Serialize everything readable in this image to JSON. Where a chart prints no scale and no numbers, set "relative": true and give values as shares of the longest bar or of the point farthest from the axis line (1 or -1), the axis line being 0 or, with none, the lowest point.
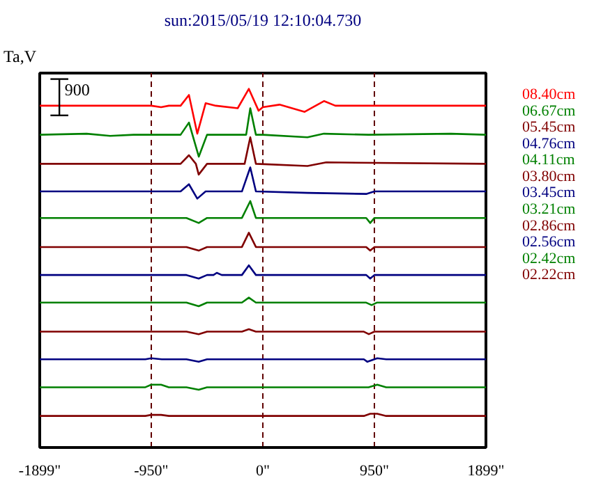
{
  "chart_data": {
    "type": "line",
    "title": "sun:2015/05/19 12:10:04.730",
    "ylabel": "Ta,V",
    "annotations": [
      "900"
    ],
    "relative": true,
    "xlim": [
      -1899,
      1899
    ],
    "xticks": [
      {
        "value": -1899,
        "label": "-1899\""
      },
      {
        "value": -950,
        "label": "-950\""
      },
      {
        "value": 0,
        "label": "0\""
      },
      {
        "value": 950,
        "label": "950\""
      },
      {
        "value": 1899,
        "label": "1899\""
      }
    ],
    "grid": "x",
    "series": [
      {
        "name": "08.40cm",
        "color": "#ff0000",
        "x": [
          -1899,
          -950,
          -866,
          -800,
          -700,
          -629,
          -558,
          -487,
          -400,
          -214,
          -119,
          -36,
          0,
          142,
          356,
          522,
          617,
          900,
          1899
        ],
        "values": [
          0.953,
          0.953,
          0.949,
          0.953,
          0.953,
          0.983,
          0.875,
          0.96,
          0.953,
          0.946,
          1.0,
          0.939,
          0.949,
          0.956,
          0.936,
          0.966,
          0.953,
          0.953,
          0.953
        ]
      },
      {
        "name": "06.67cm",
        "color": "#008000",
        "x": [
          -1899,
          -1500,
          -1300,
          -1100,
          -950,
          -700,
          -629,
          -545,
          -475,
          -214,
          -142,
          -107,
          -59,
          0,
          380,
          520,
          900,
          1600,
          1899
        ],
        "values": [
          0.872,
          0.875,
          0.869,
          0.872,
          0.872,
          0.872,
          0.906,
          0.811,
          0.872,
          0.872,
          0.872,
          0.946,
          0.872,
          0.872,
          0.865,
          0.875,
          0.872,
          0.875,
          0.872
        ]
      },
      {
        "name": "05.45cm",
        "color": "#800000",
        "x": [
          -1899,
          -700,
          -629,
          -570,
          -546,
          -475,
          -214,
          -155,
          -107,
          -59,
          380,
          540,
          1899
        ],
        "values": [
          0.791,
          0.791,
          0.815,
          0.791,
          0.761,
          0.791,
          0.791,
          0.791,
          0.865,
          0.791,
          0.785,
          0.795,
          0.791
        ]
      },
      {
        "name": "04.76cm",
        "color": "#000080",
        "x": [
          -1899,
          -700,
          -629,
          -558,
          -487,
          -178,
          -107,
          -59,
          380,
          880,
          950,
          1899
        ],
        "values": [
          0.714,
          0.714,
          0.734,
          0.694,
          0.714,
          0.714,
          0.781,
          0.714,
          0.71,
          0.707,
          0.714,
          0.714
        ]
      },
      {
        "name": "04.11cm",
        "color": "#008000",
        "x": [
          -1899,
          -650,
          -546,
          -475,
          -178,
          -107,
          -59,
          880,
          914,
          950,
          1899
        ],
        "values": [
          0.64,
          0.64,
          0.626,
          0.64,
          0.64,
          0.687,
          0.64,
          0.64,
          0.626,
          0.64,
          0.64
        ]
      },
      {
        "name": "03.80cm",
        "color": "#800000",
        "x": [
          -1899,
          -650,
          -546,
          -475,
          -178,
          -119,
          -59,
          880,
          914,
          950,
          1899
        ],
        "values": [
          0.559,
          0.559,
          0.549,
          0.559,
          0.559,
          0.599,
          0.559,
          0.559,
          0.549,
          0.559,
          0.559
        ]
      },
      {
        "name": "03.45cm",
        "color": "#000080",
        "x": [
          -1899,
          -650,
          -546,
          -475,
          -420,
          -392,
          -350,
          -178,
          -119,
          -59,
          880,
          914,
          950,
          1899
        ],
        "values": [
          0.481,
          0.481,
          0.471,
          0.481,
          0.481,
          0.487,
          0.481,
          0.481,
          0.508,
          0.481,
          0.481,
          0.471,
          0.481,
          0.481
        ]
      },
      {
        "name": "03.21cm",
        "color": "#008000",
        "x": [
          -1899,
          -650,
          -546,
          -475,
          -178,
          -119,
          -59,
          880,
          926,
          970,
          1899
        ],
        "values": [
          0.404,
          0.404,
          0.394,
          0.404,
          0.404,
          0.418,
          0.404,
          0.404,
          0.397,
          0.404,
          0.404
        ]
      },
      {
        "name": "02.86cm",
        "color": "#800000",
        "x": [
          -1899,
          -650,
          -546,
          -475,
          -178,
          -119,
          -59,
          860,
          902,
          950,
          1899
        ],
        "values": [
          0.323,
          0.323,
          0.316,
          0.323,
          0.323,
          0.33,
          0.323,
          0.323,
          0.316,
          0.323,
          0.323
        ]
      },
      {
        "name": "02.56cm",
        "color": "#000080",
        "x": [
          -1899,
          -1000,
          -950,
          -860,
          -650,
          -546,
          -475,
          860,
          890,
          974,
          1050,
          1899
        ],
        "values": [
          0.246,
          0.246,
          0.249,
          0.246,
          0.246,
          0.239,
          0.246,
          0.246,
          0.239,
          0.249,
          0.246,
          0.246
        ]
      },
      {
        "name": "02.42cm",
        "color": "#008000",
        "x": [
          -1899,
          -1000,
          -950,
          -866,
          -800,
          -650,
          -546,
          -475,
          900,
          974,
          1050,
          1899
        ],
        "values": [
          0.168,
          0.168,
          0.175,
          0.175,
          0.168,
          0.168,
          0.161,
          0.168,
          0.168,
          0.175,
          0.168,
          0.168
        ]
      },
      {
        "name": "02.22cm",
        "color": "#800000",
        "x": [
          -1899,
          -1000,
          -950,
          -866,
          -800,
          860,
          914,
          974,
          1050,
          1899
        ],
        "values": [
          0.088,
          0.088,
          0.091,
          0.091,
          0.088,
          0.088,
          0.094,
          0.094,
          0.088,
          0.088
        ]
      }
    ]
  }
}
